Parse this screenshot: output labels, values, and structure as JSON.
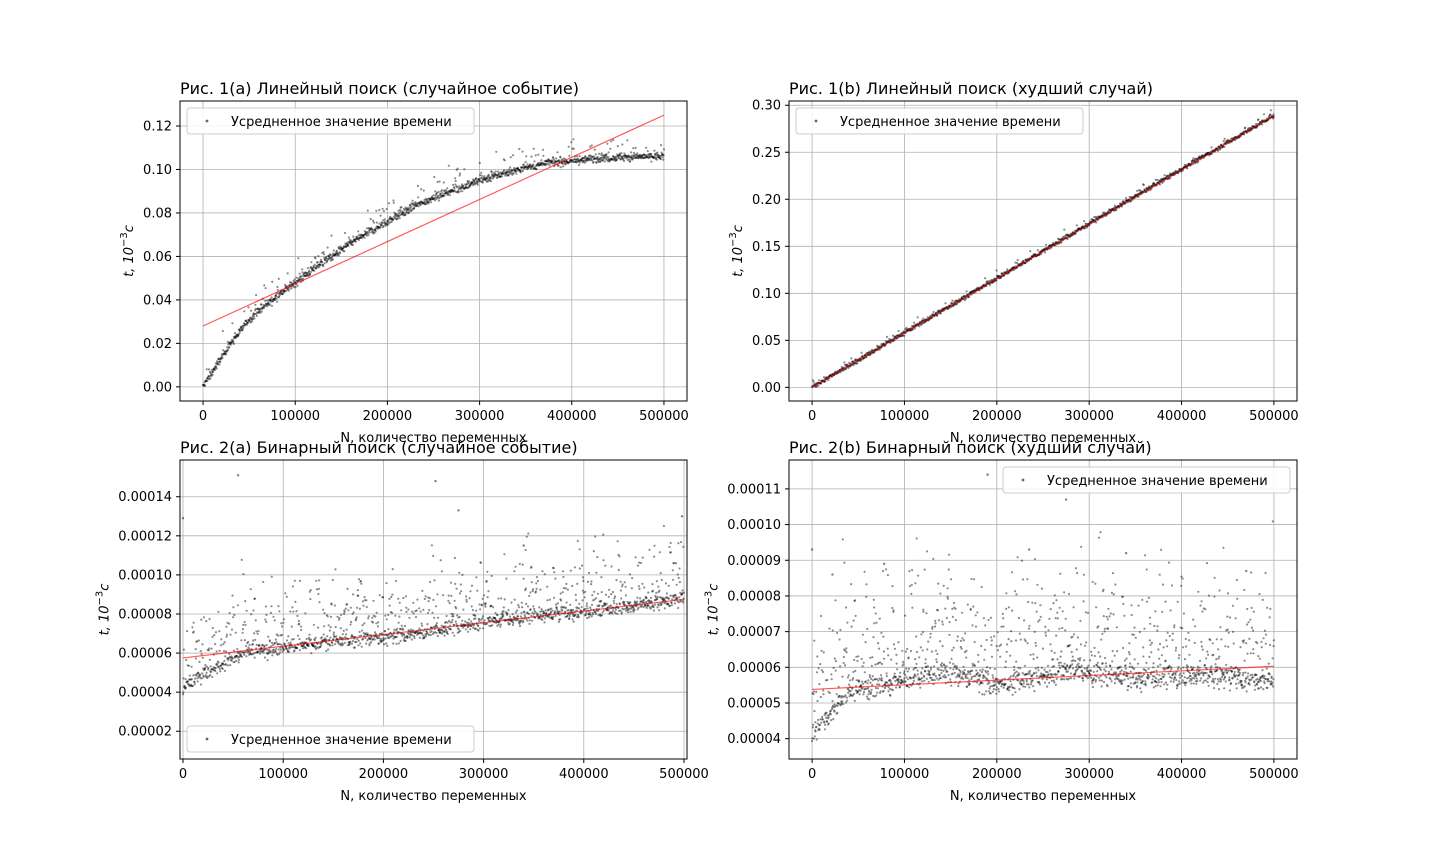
{
  "colors": {
    "points": "#000000",
    "fit": "#ff0000",
    "grid": "#b0b0b0",
    "frame": "#000000"
  },
  "chart_data": [
    {
      "type": "scatter",
      "title": "Рис. 1(a) Линейный поиск (случайное событие)",
      "xlabel": "N, количество переменных",
      "ylabel_base": "t, 10",
      "ylabel_sup": "−3",
      "ylabel_unit": "c",
      "legend": "Усредненное значение времени",
      "legend_loc": "upper-left",
      "grid": true,
      "xlim": [
        -25000,
        525000
      ],
      "ylim": [
        -0.0065,
        0.1315
      ],
      "xticks": [
        0,
        100000,
        200000,
        300000,
        400000,
        500000
      ],
      "xtick_labels": [
        "0",
        "100000",
        "200000",
        "300000",
        "400000",
        "500000"
      ],
      "yticks": [
        0,
        0.02,
        0.04,
        0.06,
        0.08,
        0.1,
        0.12
      ],
      "ytick_labels": [
        "0.00",
        "0.02",
        "0.04",
        "0.06",
        "0.08",
        "0.10",
        "0.12"
      ],
      "series": [
        {
          "kind": "points",
          "x": [
            0,
            25000,
            50000,
            75000,
            100000,
            125000,
            150000,
            175000,
            200000,
            225000,
            250000,
            275000,
            300000,
            325000,
            350000,
            375000,
            400000,
            425000,
            450000,
            475000,
            500000
          ],
          "y": [
            0.0,
            0.017,
            0.031,
            0.04,
            0.048,
            0.056,
            0.063,
            0.07,
            0.076,
            0.082,
            0.087,
            0.091,
            0.095,
            0.098,
            0.101,
            0.103,
            0.104,
            0.105,
            0.1055,
            0.106,
            0.106
          ]
        },
        {
          "kind": "fit",
          "x": [
            0,
            500000
          ],
          "y": [
            0.028,
            0.125
          ]
        }
      ]
    },
    {
      "type": "scatter",
      "title": "Рис. 1(b) Линейный поиск (худший случай)",
      "xlabel": "N, количество переменных",
      "ylabel_base": "t, 10",
      "ylabel_sup": "−3",
      "ylabel_unit": "c",
      "legend": "Усредненное значение времени",
      "legend_loc": "upper-left",
      "grid": true,
      "xlim": [
        -25000,
        525000
      ],
      "ylim": [
        -0.0145,
        0.3045
      ],
      "xticks": [
        0,
        100000,
        200000,
        300000,
        400000,
        500000
      ],
      "xtick_labels": [
        "0",
        "100000",
        "200000",
        "300000",
        "400000",
        "500000"
      ],
      "yticks": [
        0,
        0.05,
        0.1,
        0.15,
        0.2,
        0.25,
        0.3
      ],
      "ytick_labels": [
        "0.00",
        "0.05",
        "0.10",
        "0.15",
        "0.20",
        "0.25",
        "0.30"
      ],
      "series": [
        {
          "kind": "points",
          "x": [
            0,
            100000,
            200000,
            300000,
            400000,
            500000
          ],
          "y": [
            0.0,
            0.058,
            0.116,
            0.174,
            0.232,
            0.289
          ]
        },
        {
          "kind": "fit",
          "x": [
            0,
            500000
          ],
          "y": [
            0.0,
            0.289
          ]
        }
      ]
    },
    {
      "type": "scatter",
      "title": "Рис. 2(a) Бинарный поиск (случайное событие)",
      "xlabel": "N, количество переменных",
      "ylabel_base": "t, 10",
      "ylabel_sup": "−3",
      "ylabel_unit": "c",
      "legend": "Усредненное значение времени",
      "legend_loc": "lower-left",
      "grid": true,
      "xlim": [
        -3000,
        503000
      ],
      "ylim": [
        5.8e-06,
        0.0001588
      ],
      "xticks": [
        0,
        100000,
        200000,
        300000,
        400000,
        500000
      ],
      "xtick_labels": [
        "0",
        "100000",
        "200000",
        "300000",
        "400000",
        "500000"
      ],
      "yticks": [
        2e-05,
        4e-05,
        6e-05,
        8e-05,
        0.0001,
        0.00012,
        0.00014
      ],
      "ytick_labels": [
        "0.00002",
        "0.00004",
        "0.00006",
        "0.00008",
        "0.00010",
        "0.00012",
        "0.00014"
      ],
      "series": [
        {
          "kind": "points",
          "x": [
            0,
            10000,
            30000,
            60000,
            100000,
            150000,
            200000,
            250000,
            300000,
            350000,
            400000,
            450000,
            500000
          ],
          "y": [
            4.2e-05,
            4.6e-05,
            5.2e-05,
            6e-05,
            6.3e-05,
            6.6e-05,
            6.8e-05,
            7.1e-05,
            7.6e-05,
            7.9e-05,
            8.1e-05,
            8.4e-05,
            8.8e-05
          ]
        },
        {
          "kind": "fit",
          "x": [
            0,
            500000
          ],
          "y": [
            5.75e-05,
            8.75e-05
          ]
        }
      ],
      "outliers": {
        "x": [
          0,
          55000,
          252000,
          275000,
          498000,
          340000
        ],
        "y": [
          0.000129,
          0.000151,
          0.000148,
          0.000133,
          0.00013,
          0.000115
        ]
      }
    },
    {
      "type": "scatter",
      "title": "Рис. 2(b) Бинарный поиск (худший случай)",
      "xlabel": "N, количество переменных",
      "ylabel_base": "t, 10",
      "ylabel_sup": "−3",
      "ylabel_unit": "c",
      "legend": "Усредненное значение времени",
      "legend_loc": "upper-right",
      "grid": true,
      "xlim": [
        -25000,
        525000
      ],
      "ylim": [
        3.43e-05,
        0.0001181
      ],
      "xticks": [
        0,
        100000,
        200000,
        300000,
        400000,
        500000
      ],
      "xtick_labels": [
        "0",
        "100000",
        "200000",
        "300000",
        "400000",
        "500000"
      ],
      "yticks": [
        4e-05,
        5e-05,
        6e-05,
        7e-05,
        8e-05,
        9e-05,
        0.0001,
        0.00011
      ],
      "ytick_labels": [
        "0.00004",
        "0.00005",
        "0.00006",
        "0.00007",
        "0.00008",
        "0.00009",
        "0.00010",
        "0.00011"
      ],
      "series": [
        {
          "kind": "points",
          "x": [
            0,
            20000,
            40000,
            70000,
            140000,
            200000,
            280000,
            350000,
            420000,
            500000
          ],
          "y": [
            4.2e-05,
            4.7e-05,
            5.3e-05,
            5.5e-05,
            5.9e-05,
            5.5e-05,
            5.9e-05,
            5.7e-05,
            5.8e-05,
            5.6e-05
          ]
        },
        {
          "kind": "fit",
          "x": [
            0,
            500000
          ],
          "y": [
            5.38e-05,
            6.03e-05
          ]
        }
      ],
      "outliers": {
        "x": [
          0,
          22000,
          78000,
          190000,
          235000,
          275000,
          340000,
          470000
        ],
        "y": [
          9.3e-05,
          8.6e-05,
          8.9e-05,
          0.000114,
          9.3e-05,
          0.000107,
          9.2e-05,
          8.7e-05
        ]
      }
    }
  ]
}
